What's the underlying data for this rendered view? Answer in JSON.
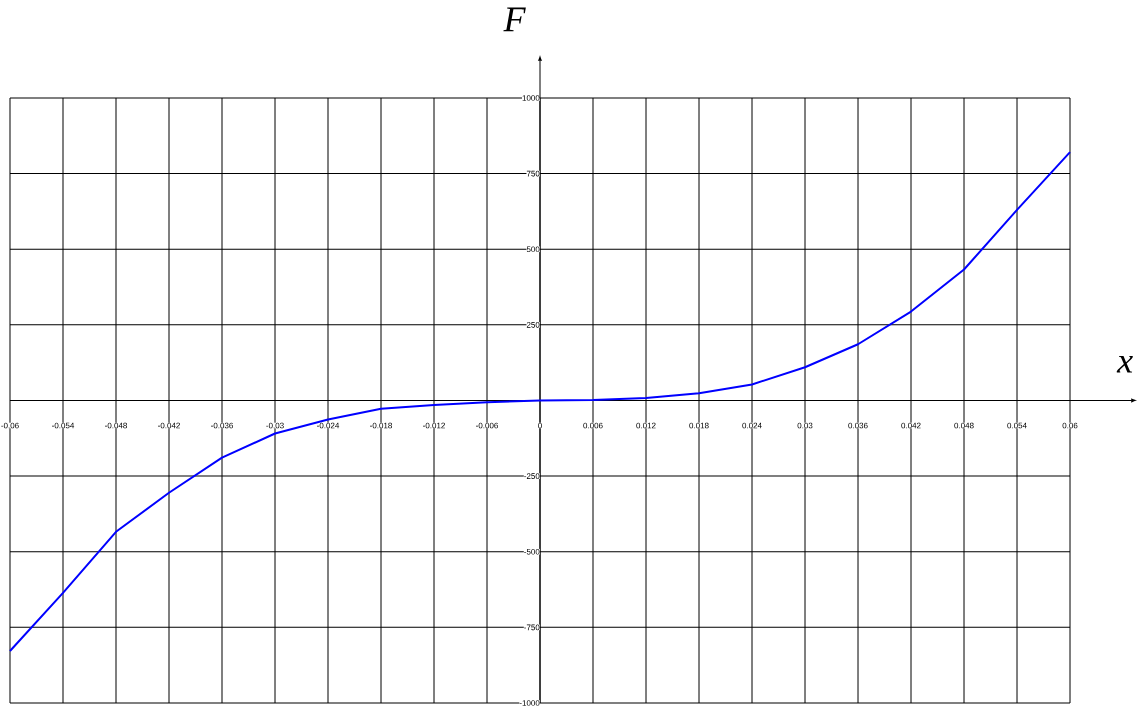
{
  "chart_data": {
    "type": "line",
    "xlabel": "x",
    "ylabel": "F",
    "color": "#0000ff",
    "grid": true,
    "x": [
      -0.06,
      -0.054,
      -0.048,
      -0.042,
      -0.036,
      -0.03,
      -0.024,
      -0.018,
      -0.012,
      -0.006,
      0,
      0.006,
      0.012,
      0.018,
      0.024,
      0.03,
      0.036,
      0.042,
      0.048,
      0.054,
      0.06
    ],
    "values": [
      -828,
      -636,
      -434,
      -305,
      -189,
      -109,
      -63,
      -27,
      -15,
      -6,
      0,
      2,
      8,
      24,
      53,
      110,
      186,
      294,
      433,
      630,
      821
    ],
    "xlim": [
      -0.06,
      0.06
    ],
    "ylim": [
      -1000,
      1000
    ],
    "xticks": [
      -0.06,
      -0.054,
      -0.048,
      -0.042,
      -0.036,
      -0.03,
      -0.024,
      -0.018,
      -0.012,
      -0.006,
      0,
      0.006,
      0.012,
      0.018,
      0.024,
      0.03,
      0.036,
      0.042,
      0.048,
      0.054,
      0.06
    ],
    "yticks": [
      -1000,
      -750,
      -500,
      -250,
      {
        "value": 0,
        "label": null
      },
      250,
      500,
      750,
      1000
    ]
  }
}
